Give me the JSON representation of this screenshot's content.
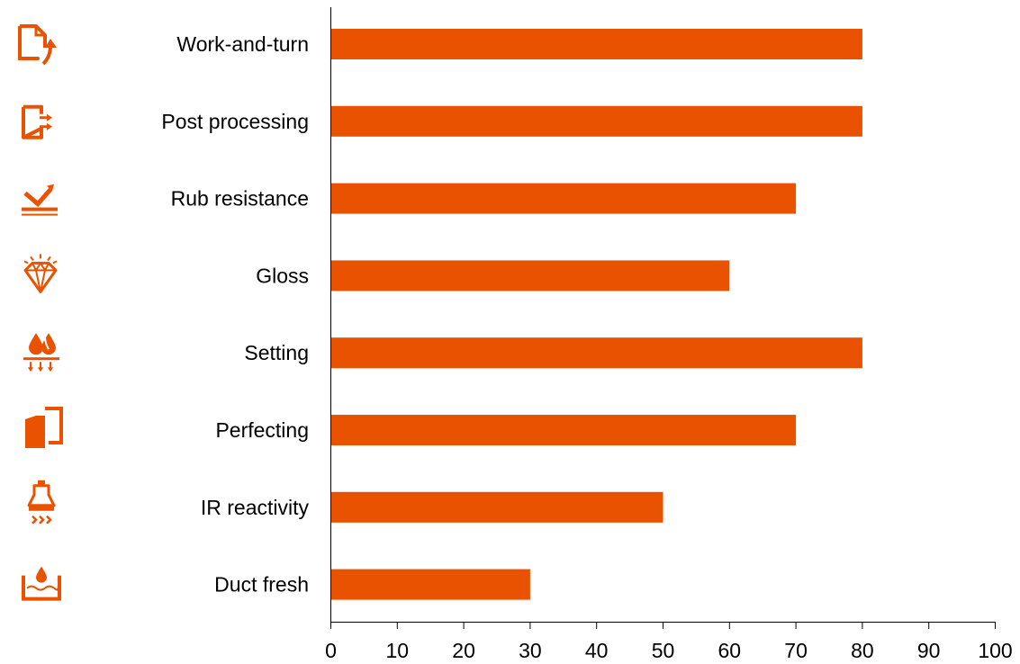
{
  "chart_data": {
    "type": "bar",
    "orientation": "horizontal",
    "title": "",
    "xlabel": "",
    "ylabel": "",
    "categories": [
      "Work-and-turn",
      "Post processing",
      "Rub resistance",
      "Gloss",
      "Setting",
      "Perfecting",
      "IR reactivity",
      "Duct fresh"
    ],
    "values": [
      80,
      80,
      70,
      60,
      80,
      70,
      50,
      30
    ],
    "xlim": [
      0,
      100
    ],
    "xticks": [
      0,
      10,
      20,
      30,
      40,
      50,
      60,
      70,
      80,
      90,
      100
    ],
    "tick_labels": [
      "0",
      "10",
      "20",
      "30",
      "40",
      "50",
      "60",
      "70",
      "80",
      "90",
      "100"
    ],
    "grid": false,
    "legend": "none",
    "bar_color": "#E85200",
    "icons": [
      "page-turn-icon",
      "page-output-icon",
      "rub-resistance-icon",
      "diamond-gloss-icon",
      "ink-setting-icon",
      "perfecting-icon",
      "ir-lamp-icon",
      "ink-duct-icon"
    ]
  }
}
